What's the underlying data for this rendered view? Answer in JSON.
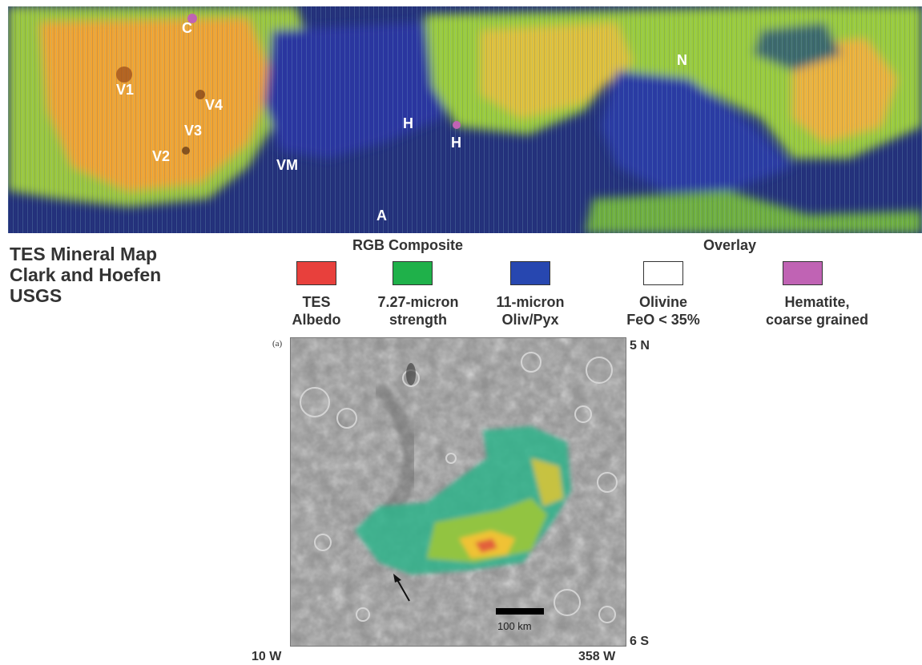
{
  "top_map": {
    "labels": {
      "c": "C",
      "v1": "V1",
      "v4": "V4",
      "v3": "V3",
      "v2": "V2",
      "vm": "VM",
      "h1": "H",
      "h2": "H",
      "a": "A",
      "n": "N"
    }
  },
  "title": {
    "line1": "TES Mineral Map",
    "line2": "Clark and Hoefen",
    "line3": "USGS"
  },
  "legend": {
    "rgb_heading": "RGB Composite",
    "overlay_heading": "Overlay",
    "items": [
      {
        "color": "#e8403c",
        "line1": "TES",
        "line2": "Albedo"
      },
      {
        "color": "#1fb14a",
        "line1": "7.27-micron",
        "line2": "strength"
      },
      {
        "color": "#2747b0",
        "line1": "11-micron",
        "line2": "Oliv/Pyx"
      },
      {
        "color": "#ffffff",
        "line1": "Olivine",
        "line2": "FeO < 35%"
      },
      {
        "color": "#c063b4",
        "line1": "Hematite,",
        "line2": "coarse grained"
      }
    ]
  },
  "bottom_map": {
    "panel_label": "(a)",
    "coords": {
      "top_right": "5 N",
      "bottom_right": "6 S",
      "bottom_left": "10 W",
      "bottom_right_lon": "358 W"
    },
    "scale_bar_label": "100 km"
  }
}
